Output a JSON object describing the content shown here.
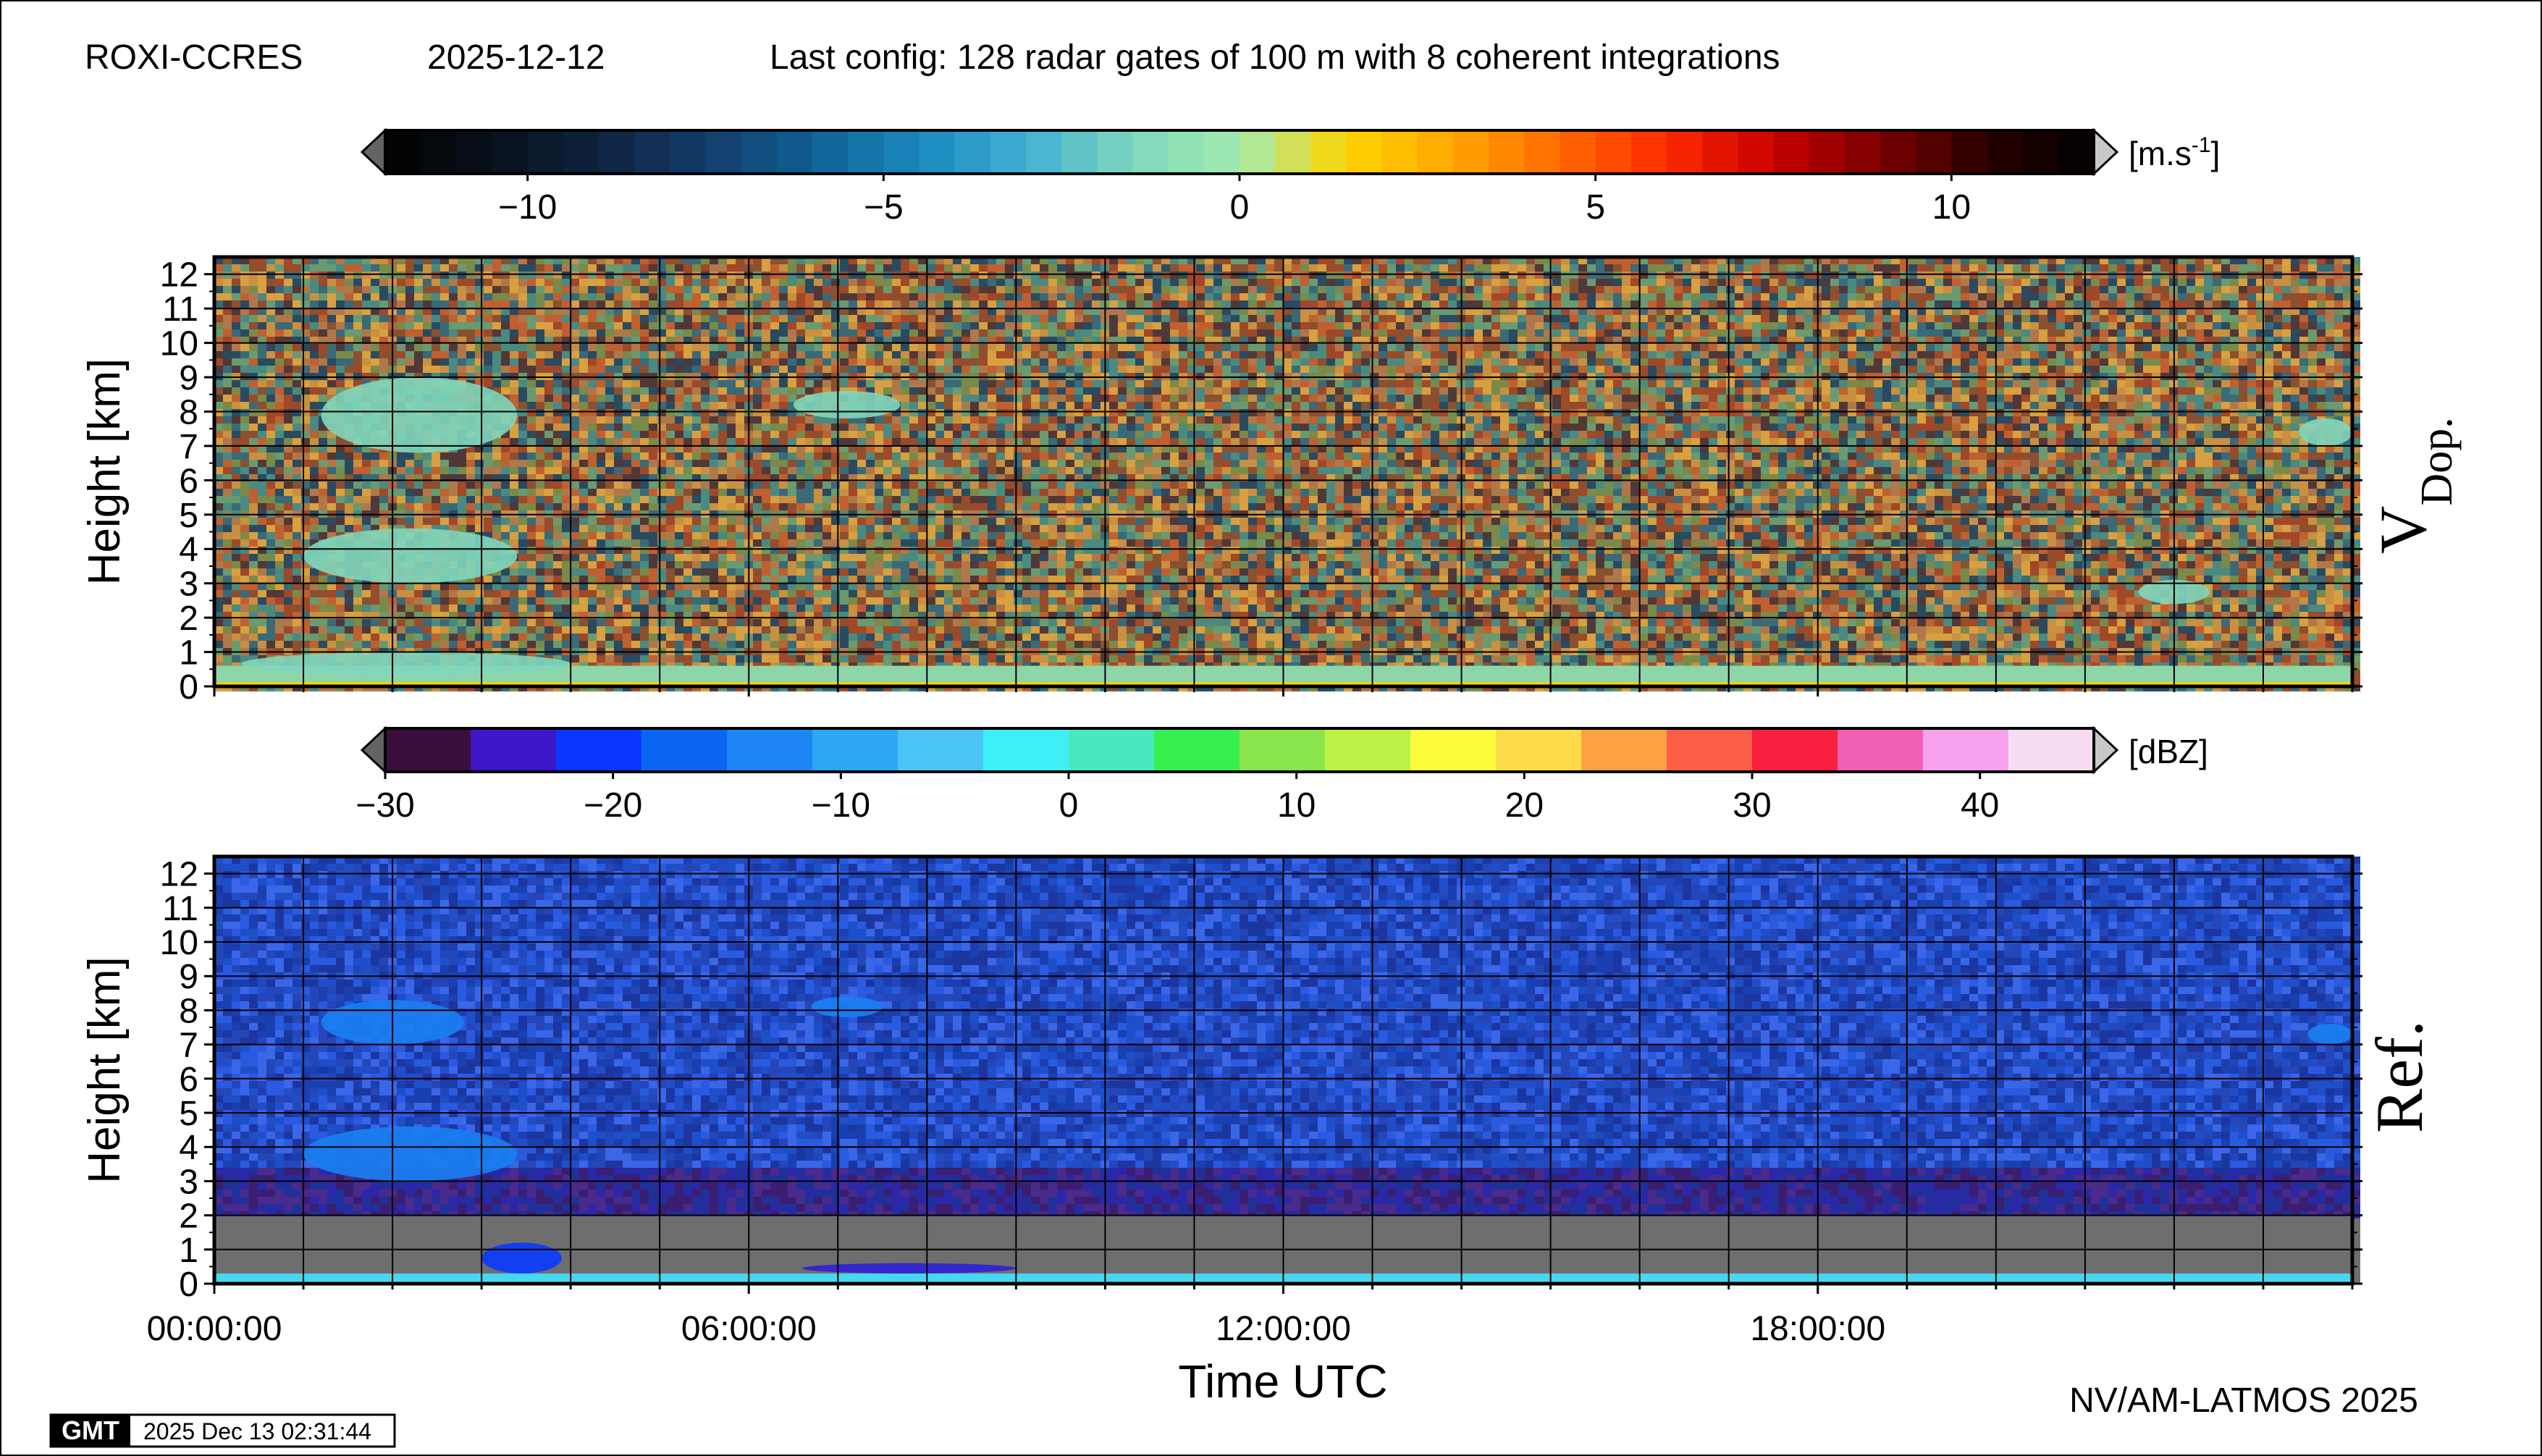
{
  "header": {
    "station": "ROXI-CCRES",
    "date": "2025-12-12",
    "config": "Last config: 128 radar gates of 100 m with 8 coherent integrations"
  },
  "footer": {
    "credit": "NV/AM-LATMOS 2025",
    "gmt_logo": "GMT",
    "timestamp": "2025 Dec 13 02:31:44"
  },
  "colorbars": [
    {
      "unit": "[m.s-1]",
      "unit_base": "[m.s",
      "unit_sup": "-1",
      "unit_end": "]",
      "range": [
        -12,
        12
      ],
      "ticks": [
        -10,
        -5,
        0,
        5,
        10
      ],
      "tick_labels": [
        "−10",
        "−5",
        "0",
        "5",
        "10"
      ],
      "segments": 48,
      "palette_name": "polar-velocity",
      "colors": [
        "#000000",
        "#08111c",
        "#0f2240",
        "#143c6a",
        "#0f5f93",
        "#1a88bd",
        "#3fb0d2",
        "#7fd6bd",
        "#a3ecb0",
        "#ffd400",
        "#ffa600",
        "#ff6a00",
        "#ff2a00",
        "#c80000",
        "#7a0000",
        "#2a0000",
        "#000000"
      ],
      "neg_tip_color": "#646464",
      "pos_tip_color": "#c8c8c8"
    },
    {
      "unit": "[dBZ]",
      "range": [
        -30,
        45
      ],
      "ticks": [
        -30,
        -20,
        -10,
        0,
        10,
        20,
        30,
        40
      ],
      "tick_labels": [
        "−30",
        "−20",
        "−10",
        "0",
        "10",
        "20",
        "30",
        "40"
      ],
      "colors": [
        "#3a0f3e",
        "#3d16c7",
        "#0a37ff",
        "#0a66f0",
        "#1e86f4",
        "#2da6f4",
        "#4cc4f8",
        "#3ef0f5",
        "#49e8c1",
        "#37f050",
        "#8ae64c",
        "#bcf145",
        "#fdfd3c",
        "#fedb4a",
        "#fca242",
        "#fb5e46",
        "#f8203e",
        "#f15fb6",
        "#f7a1ef",
        "#f8dcf3"
      ],
      "neg_tip_color": "#646464",
      "pos_tip_color": "#c8c8c8"
    }
  ],
  "panels": [
    {
      "label_main": "V",
      "label_sub": "Dop.",
      "ylabel": "Height [km]",
      "yticks": [
        0,
        1,
        2,
        3,
        4,
        5,
        6,
        7,
        8,
        9,
        10,
        11,
        12
      ],
      "show_time_labels": false,
      "noise_palette": [
        "#d8a040",
        "#c06030",
        "#4a8a80",
        "#8a5030",
        "#3a6a78",
        "#7a8a48",
        "#b0784a",
        "#2a4a60",
        "#a04828",
        "#6a9a70",
        "#c89040",
        "#503838"
      ],
      "surface_color": "#8ed6a8",
      "surface_top_color": "#ffd400"
    },
    {
      "label_main": "Ref.",
      "ylabel": "Height [km]",
      "yticks": [
        0,
        1,
        2,
        3,
        4,
        5,
        6,
        7,
        8,
        9,
        10,
        11,
        12
      ],
      "show_time_labels": true,
      "noise_palette": [
        "#1f4fc8",
        "#2a5ae0",
        "#1a3fb0",
        "#3a66e8",
        "#2446b8",
        "#1c36a0"
      ],
      "low_palette": [
        "#3a1e72",
        "#2a28a8",
        "#4a2a8a",
        "#20309a"
      ],
      "empty_color": "#6e6e6e",
      "surface_color": "#47d7f0"
    }
  ],
  "time_axis": {
    "xlabel": "Time UTC",
    "range_hours": [
      0,
      24
    ],
    "major_ticks": [
      0,
      6,
      12,
      18
    ],
    "major_labels": [
      "00:00:00",
      "06:00:00",
      "12:00:00",
      "18:00:00"
    ]
  },
  "chart_data": [
    {
      "type": "heatmap",
      "title": "V Dop.",
      "xlabel": "Time UTC",
      "ylabel": "Height [km]",
      "xlim_hours": [
        0,
        24
      ],
      "ylim_km": [
        0,
        12.5
      ],
      "colorbar_unit": "[m.s-1]",
      "colorbar_range": [
        -12,
        12
      ],
      "features": [
        {
          "name": "surface layer",
          "t_start_h": 0,
          "t_end_h": 24,
          "h_bottom_km": 0,
          "h_top_km": 0.6,
          "value": -0.5
        },
        {
          "name": "low cloud",
          "t_start_h": 0.3,
          "t_end_h": 4.0,
          "h_bottom_km": 0.3,
          "h_top_km": 1.0,
          "value": -1.5
        },
        {
          "name": "mid cloud",
          "t_start_h": 1.0,
          "t_end_h": 3.4,
          "h_bottom_km": 3.0,
          "h_top_km": 4.6,
          "value": -1.5
        },
        {
          "name": "upper cloud",
          "t_start_h": 1.2,
          "t_end_h": 3.4,
          "h_bottom_km": 6.8,
          "h_top_km": 9.0,
          "value": -1.5
        },
        {
          "name": "cloud",
          "t_start_h": 6.5,
          "t_end_h": 7.7,
          "h_bottom_km": 7.8,
          "h_top_km": 8.6,
          "value": -1.5
        },
        {
          "name": "cloud",
          "t_start_h": 21.6,
          "t_end_h": 22.4,
          "h_bottom_km": 2.4,
          "h_top_km": 3.1,
          "value": -1.5
        },
        {
          "name": "cloud",
          "t_start_h": 23.4,
          "t_end_h": 24,
          "h_bottom_km": 7.0,
          "h_top_km": 7.8,
          "value": -1.5
        }
      ]
    },
    {
      "type": "heatmap",
      "title": "Ref.",
      "xlabel": "Time UTC",
      "ylabel": "Height [km]",
      "xlim_hours": [
        0,
        24
      ],
      "ylim_km": [
        0,
        12.5
      ],
      "colorbar_unit": "[dBZ]",
      "colorbar_range": [
        -30,
        45
      ],
      "features": [
        {
          "name": "surface return",
          "t_start_h": 0,
          "t_end_h": 24,
          "h_bottom_km": 0,
          "h_top_km": 0.3,
          "value": -1
        },
        {
          "name": "no signal",
          "t_start_h": 0,
          "t_end_h": 24,
          "h_bottom_km": 0.3,
          "h_top_km": 2.0,
          "value": null
        },
        {
          "name": "low cloud",
          "t_start_h": 3.0,
          "t_end_h": 3.9,
          "h_bottom_km": 0.3,
          "h_top_km": 1.2,
          "value": -22
        },
        {
          "name": "mid cloud",
          "t_start_h": 1.0,
          "t_end_h": 3.4,
          "h_bottom_km": 3.0,
          "h_top_km": 4.6,
          "value": -15
        },
        {
          "name": "upper cloud",
          "t_start_h": 1.2,
          "t_end_h": 2.8,
          "h_bottom_km": 7.0,
          "h_top_km": 8.3,
          "value": -15
        },
        {
          "name": "cloud",
          "t_start_h": 6.7,
          "t_end_h": 7.5,
          "h_bottom_km": 7.8,
          "h_top_km": 8.4,
          "value": -15
        },
        {
          "name": "low echo",
          "t_start_h": 6.6,
          "t_end_h": 9.0,
          "h_bottom_km": 0.3,
          "h_top_km": 0.6,
          "value": -25
        },
        {
          "name": "cloud",
          "t_start_h": 23.5,
          "t_end_h": 24,
          "h_bottom_km": 7.0,
          "h_top_km": 7.6,
          "value": -15
        }
      ]
    }
  ]
}
